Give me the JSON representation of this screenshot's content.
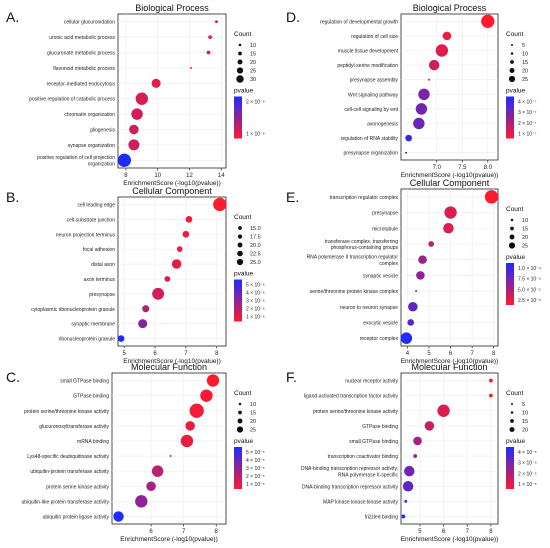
{
  "colors": {
    "high": "#1f2bff",
    "low": "#ff1a2e"
  },
  "chart_data": [
    {
      "id": "A",
      "panel_label": "A.",
      "type": "scatter",
      "title": "Biological Process",
      "xlabel": "EnrichmentScore (-log10(pvalue))",
      "xlim": [
        7.5,
        14.3
      ],
      "xticks": [
        8,
        10,
        12,
        14
      ],
      "categories": [
        "cellular glucuronidation",
        "uronic acid metabolic process",
        "glucuronate metabolic process",
        "flavonoid metabolic process",
        "receptor-mediated endocytosis",
        "positive regulation of catabolic process",
        "chromatin organization",
        "gliogenesis",
        "synapse organization",
        "positive regulation of cell projection organization"
      ],
      "x": [
        13.7,
        13.3,
        13.2,
        12.1,
        9.9,
        9.0,
        8.7,
        8.5,
        8.5,
        7.9
      ],
      "size": [
        6,
        8,
        8,
        4,
        19,
        26,
        24,
        20,
        23,
        28
      ],
      "color_t": [
        0.05,
        0.06,
        0.06,
        0.08,
        0.12,
        0.18,
        0.2,
        0.22,
        0.22,
        1.0
      ],
      "size_legend": {
        "title": "Count",
        "labels": [
          "10",
          "15",
          "20",
          "25",
          "30"
        ],
        "counts": [
          10,
          15,
          20,
          25,
          30
        ]
      },
      "color_legend": {
        "title": "pvalue",
        "labels": [
          "2 × 10⁻⁹",
          "1 × 10⁻⁹"
        ]
      }
    },
    {
      "id": "B",
      "panel_label": "B.",
      "type": "scatter",
      "title": "Cellular Component",
      "xlabel": "EnrichmentScore (-log10(pvalue))",
      "xlim": [
        4.8,
        8.3
      ],
      "xticks": [
        5,
        6,
        7,
        8
      ],
      "categories": [
        "cell leading edge",
        "cell-substrate junction",
        "neuron projection terminus",
        "focal adhesion",
        "distal axon",
        "axon terminus",
        "presynapse",
        "cytoplasmic ribonucleoprotein granule",
        "synaptic membrane",
        "ribonucleoprotein granule"
      ],
      "x": [
        8.1,
        7.1,
        7.0,
        6.8,
        6.7,
        6.4,
        6.1,
        5.7,
        5.6,
        4.9
      ],
      "size": [
        28,
        14,
        14,
        12,
        20,
        12,
        25,
        15,
        19,
        14
      ],
      "color_t": [
        0.0,
        0.06,
        0.07,
        0.1,
        0.12,
        0.18,
        0.2,
        0.35,
        0.55,
        1.0
      ],
      "size_legend": {
        "title": "Count",
        "labels": [
          "15.0",
          "17.5",
          "20.0",
          "22.5",
          "25.0"
        ],
        "counts": [
          15,
          17.5,
          20,
          22.5,
          25
        ]
      },
      "color_legend": {
        "title": "pvalue",
        "labels": [
          "5 × 10⁻⁶",
          "4 × 10⁻⁶",
          "3 × 10⁻⁶",
          "2 × 10⁻⁶",
          "1 × 10⁻⁶"
        ]
      }
    },
    {
      "id": "C",
      "panel_label": "C.",
      "type": "scatter",
      "title": "Molecular Function",
      "xlabel": "EnrichmentScore (-log10(pvalue))",
      "xlim": [
        4.8,
        8.3
      ],
      "xticks": [
        6,
        7,
        8
      ],
      "categories": [
        "small GTPase binding",
        "GTPase binding",
        "protein serine/threonine kinase activity",
        "glucuronosyltransferase activity",
        "mRNA binding",
        "Lys48-specific deubiquitinase activity",
        "ubiquitin-protein transferase activity",
        "protein serine kinase activity",
        "ubiquitin-like protein transferase activity",
        "ubiquitin protein ligase activity"
      ],
      "x": [
        7.9,
        7.7,
        7.4,
        7.2,
        7.1,
        6.6,
        6.2,
        6.0,
        5.7,
        5.0
      ],
      "size": [
        26,
        26,
        30,
        20,
        26,
        4,
        24,
        20,
        26,
        22
      ],
      "color_t": [
        0.0,
        0.02,
        0.05,
        0.08,
        0.09,
        0.2,
        0.3,
        0.4,
        0.5,
        1.0
      ],
      "size_legend": {
        "title": "Count",
        "labels": [
          "10",
          "15",
          "20",
          "25"
        ],
        "counts": [
          10,
          15,
          20,
          25
        ]
      },
      "color_legend": {
        "title": "pvalue",
        "labels": [
          "5 × 10⁻⁶",
          "4 × 10⁻⁶",
          "3 × 10⁻⁶",
          "2 × 10⁻⁶",
          "1 × 10⁻⁶"
        ]
      }
    },
    {
      "id": "D",
      "panel_label": "D.",
      "type": "scatter",
      "title": "Biological Process",
      "xlabel": "EnrichmentScore (-log10(pvalue))",
      "xlim": [
        6.3,
        8.2
      ],
      "xticks": [
        7.0,
        7.5,
        8.0
      ],
      "categories": [
        "regulation of developmental growth",
        "regulation of cell size",
        "muscle tissue development",
        "peptidyl-serine modification",
        "presynapse assembly",
        "Wnt signaling pathway",
        "cell-cell signaling by wnt",
        "axonogenesis",
        "regulation of RNA stability",
        "presynapse organization"
      ],
      "x": [
        8.0,
        7.2,
        7.1,
        6.95,
        6.85,
        6.75,
        6.7,
        6.65,
        6.45,
        6.4
      ],
      "size": [
        28,
        18,
        26,
        22,
        4,
        24,
        24,
        24,
        14,
        4
      ],
      "color_t": [
        0.0,
        0.1,
        0.15,
        0.22,
        0.3,
        0.6,
        0.62,
        0.66,
        0.92,
        1.0
      ],
      "size_legend": {
        "title": "Count",
        "labels": [
          "5",
          "10",
          "15",
          "20",
          "25"
        ],
        "counts": [
          5,
          10,
          15,
          20,
          25
        ]
      },
      "color_legend": {
        "title": "pvalue",
        "labels": [
          "4 × 10⁻⁷",
          "3 × 10⁻⁷",
          "2 × 10⁻⁷",
          "1 × 10⁻⁷"
        ]
      }
    },
    {
      "id": "E",
      "panel_label": "E.",
      "type": "scatter",
      "title": "Cellular Component",
      "xlabel": "EnrichmentScore (-log10(pvalue))",
      "xlim": [
        3.7,
        8.2
      ],
      "xticks": [
        4,
        5,
        6,
        7,
        8
      ],
      "categories": [
        "transcription regulator complex",
        "presynapse",
        "microtubule",
        "transferase complex, transferring phosphorus-containing groups",
        "RNA polymerase II transcription regulator complex",
        "synaptic vesicle",
        "serine/threonine protein kinase complex",
        "neuron to neuron synapse",
        "exocytic vesicle",
        "receptor complex"
      ],
      "x": [
        7.9,
        6.0,
        5.9,
        5.1,
        4.7,
        4.6,
        4.4,
        4.25,
        4.15,
        3.95
      ],
      "size": [
        28,
        26,
        22,
        12,
        18,
        18,
        4,
        20,
        14,
        24
      ],
      "color_t": [
        0.0,
        0.15,
        0.16,
        0.3,
        0.45,
        0.5,
        0.6,
        0.7,
        0.75,
        1.0
      ],
      "size_legend": {
        "title": "Count",
        "labels": [
          "10",
          "15",
          "20",
          "25"
        ],
        "counts": [
          10,
          15,
          20,
          25
        ]
      },
      "color_legend": {
        "title": "pvalue",
        "labels": [
          "1.0 × 10⁻⁴",
          "7.5 × 10⁻⁵",
          "5.0 × 10⁻⁵",
          "2.5 × 10⁻⁵"
        ]
      }
    },
    {
      "id": "F",
      "panel_label": "F.",
      "type": "scatter",
      "title": "Molecular Function",
      "xlabel": "EnrichmentScore (-log10(pvalue))",
      "xlim": [
        4.2,
        8.3
      ],
      "xticks": [
        5,
        6,
        7,
        8
      ],
      "categories": [
        "nuclear receptor activity",
        "ligand-activated transcription factor activity",
        "protein serine/threonine kinase activity",
        "GTPase binding",
        "small GTPase binding",
        "transcription coactivator binding",
        "DNA-binding transcription repressor activity, RNA polymerase II-specific",
        "DNA-binding transcription repressor activity",
        "MAP kinase kinase kinase activity",
        "frizzled binding"
      ],
      "x": [
        8.0,
        8.0,
        6.0,
        5.4,
        4.9,
        4.8,
        4.55,
        4.5,
        4.4,
        4.3
      ],
      "size": [
        8,
        8,
        26,
        20,
        18,
        8,
        22,
        22,
        6,
        8
      ],
      "color_t": [
        0.0,
        0.0,
        0.15,
        0.25,
        0.4,
        0.45,
        0.65,
        0.7,
        0.85,
        1.0
      ],
      "size_legend": {
        "title": "Count",
        "labels": [
          "5",
          "10",
          "15",
          "20"
        ],
        "counts": [
          5,
          10,
          15,
          20
        ]
      },
      "color_legend": {
        "title": "pvalue",
        "labels": [
          "4 × 10⁻⁵",
          "3 × 10⁻⁵",
          "2 × 10⁻⁵",
          "1 × 10⁻⁵"
        ]
      }
    }
  ]
}
